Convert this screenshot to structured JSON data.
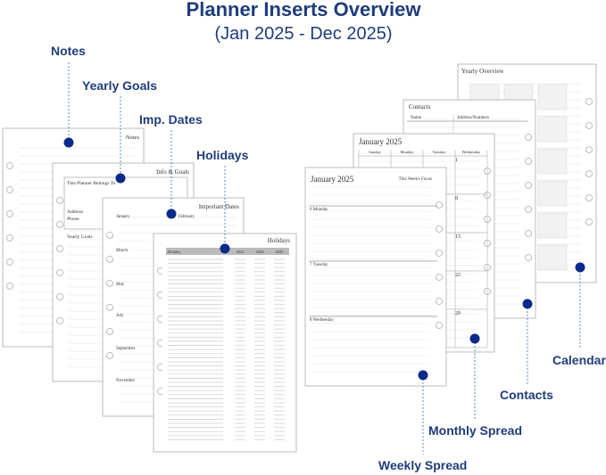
{
  "header": {
    "title": "Planner Inserts Overview",
    "subtitle": "(Jan 2025 - Dec 2025)"
  },
  "callouts": {
    "notes": "Notes",
    "yearly_goals": "Yearly Goals",
    "imp_dates": "Imp. Dates",
    "holidays": "Holidays",
    "weekly": "Weekly Spread",
    "monthly": "Monthly Spread",
    "contacts": "Contacts",
    "calendar": "Calendar"
  },
  "sheets": {
    "notes": {
      "title": "Notes"
    },
    "info": {
      "title": "Info & Goals",
      "belongs": "This Planner Belongs To",
      "address": "Address",
      "phone": "Phone",
      "goals": "Yearly Goals"
    },
    "dates": {
      "title": "Important Dates",
      "months": [
        "January",
        "February",
        "March",
        "May",
        "July",
        "September",
        "November"
      ]
    },
    "holidays": {
      "title": "Holidays",
      "columns": [
        "Holiday",
        "2023",
        "2024",
        "2025"
      ]
    },
    "weekly": {
      "title": "January 2025",
      "focus": "This Week's Focus",
      "days": [
        "6 Monday",
        "7 Tuesday",
        "8 Wednesday"
      ]
    },
    "monthly": {
      "title": "January 2025",
      "weekdays": [
        "Sunday",
        "Monday",
        "Tuesday",
        "Wednesday"
      ],
      "dates": [
        "1",
        "8",
        "15",
        "22",
        "29"
      ]
    },
    "contacts": {
      "title": "Contacts",
      "columns": [
        "Name",
        "Address/Numbers"
      ]
    },
    "yearly": {
      "title": "Yearly Overview"
    }
  }
}
